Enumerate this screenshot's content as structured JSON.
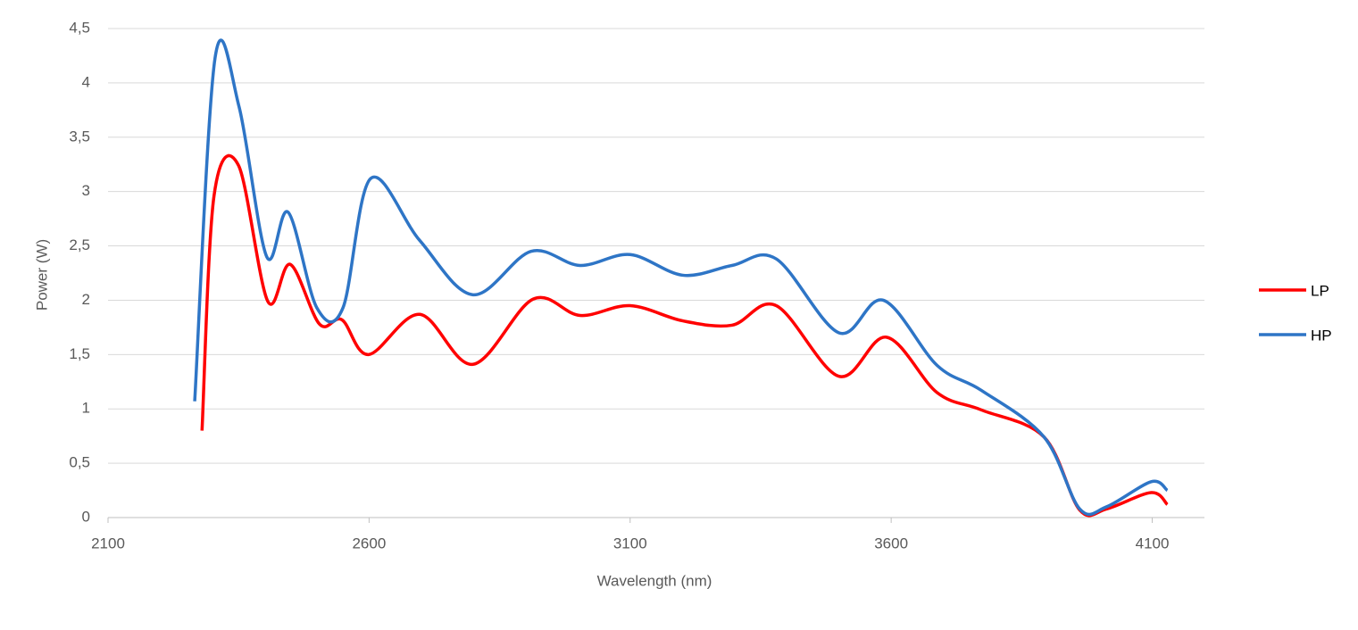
{
  "chart_data": {
    "type": "line",
    "x_label": "Wavelength (nm)",
    "y_label": "Power (W)",
    "xlim": [
      2100,
      4200
    ],
    "xticks": [
      2100,
      2600,
      3100,
      3600,
      4100
    ],
    "ylim": [
      0,
      4.5
    ],
    "yticks": [
      0,
      {
        "value": 0.5,
        "label": "0,5"
      },
      1,
      {
        "value": 1.5,
        "label": "1,5"
      },
      2,
      {
        "value": 2.5,
        "label": "2,5"
      },
      3,
      {
        "value": 3.5,
        "label": "3,5"
      },
      4,
      {
        "value": 4.5,
        "label": "4,5"
      }
    ],
    "grid": true,
    "legend": "right",
    "series": [
      {
        "name": "LP",
        "color": "#ff0000",
        "x": [
          2280,
          2303,
          2350,
          2406,
          2449,
          2505,
          2548,
          2599,
          2697,
          2799,
          2914,
          3004,
          3100,
          3201,
          3295,
          3380,
          3500,
          3591,
          3688,
          3773,
          3893,
          3961,
          4013,
          4098,
          4129
        ],
        "values": [
          0.8,
          2.96,
          3.24,
          1.99,
          2.33,
          1.78,
          1.82,
          1.5,
          1.87,
          1.41,
          2.01,
          1.86,
          1.95,
          1.81,
          1.77,
          1.95,
          1.3,
          1.66,
          1.15,
          0.99,
          0.74,
          0.07,
          0.08,
          0.23,
          0.12
        ]
      },
      {
        "name": "HP",
        "color": "#2e75c6",
        "x": [
          2266,
          2305,
          2351,
          2404,
          2445,
          2500,
          2550,
          2603,
          2697,
          2799,
          2910,
          3004,
          3100,
          3201,
          3295,
          3380,
          3500,
          3585,
          3688,
          3773,
          3893,
          3961,
          4013,
          4098,
          4129
        ],
        "values": [
          1.07,
          4.23,
          3.78,
          2.4,
          2.81,
          1.93,
          1.93,
          3.12,
          2.55,
          2.05,
          2.45,
          2.32,
          2.42,
          2.23,
          2.32,
          2.38,
          1.7,
          2.0,
          1.4,
          1.17,
          0.74,
          0.08,
          0.1,
          0.33,
          0.25
        ]
      }
    ]
  }
}
